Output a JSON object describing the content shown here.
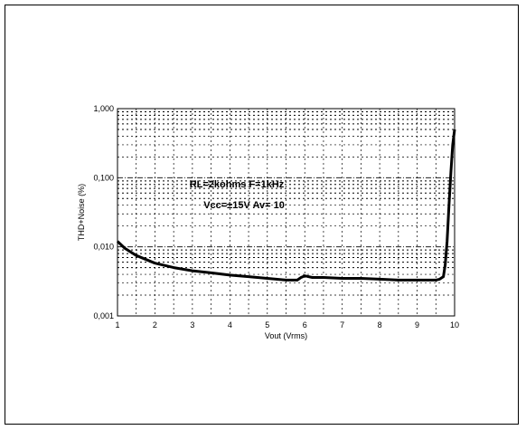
{
  "chart_data": {
    "type": "line",
    "title": "",
    "xlabel": "Vout (Vrms)",
    "ylabel": "THD+Noise (%)",
    "xlim": [
      1,
      10
    ],
    "ylim": [
      0.001,
      1
    ],
    "yscale": "log",
    "x_ticks": [
      "1",
      "2",
      "3",
      "4",
      "5",
      "6",
      "7",
      "8",
      "9",
      "10"
    ],
    "y_ticks": [
      "0,001",
      "0,010",
      "0,100",
      "1,000"
    ],
    "grid": true,
    "annotations": [
      "RL=2kohms  F=1kHz",
      "Vcc=±15V  Av= 10"
    ],
    "series": [
      {
        "x": [
          1.0,
          1.2,
          1.5,
          2.0,
          2.5,
          3.0,
          3.5,
          4.0,
          4.5,
          5.0,
          5.5,
          5.8,
          5.9,
          6.0,
          6.2,
          6.5,
          7.0,
          7.5,
          8.0,
          8.5,
          9.0,
          9.3,
          9.5,
          9.6,
          9.7,
          9.75,
          9.8,
          9.85,
          9.9,
          9.95,
          10.0
        ],
        "y": [
          0.012,
          0.0095,
          0.0075,
          0.0058,
          0.005,
          0.0045,
          0.0042,
          0.0039,
          0.0037,
          0.0035,
          0.0033,
          0.0033,
          0.0036,
          0.0038,
          0.0036,
          0.0036,
          0.0035,
          0.0035,
          0.0034,
          0.0033,
          0.0033,
          0.0033,
          0.0033,
          0.0034,
          0.0037,
          0.0055,
          0.012,
          0.04,
          0.12,
          0.3,
          0.5
        ]
      }
    ]
  }
}
